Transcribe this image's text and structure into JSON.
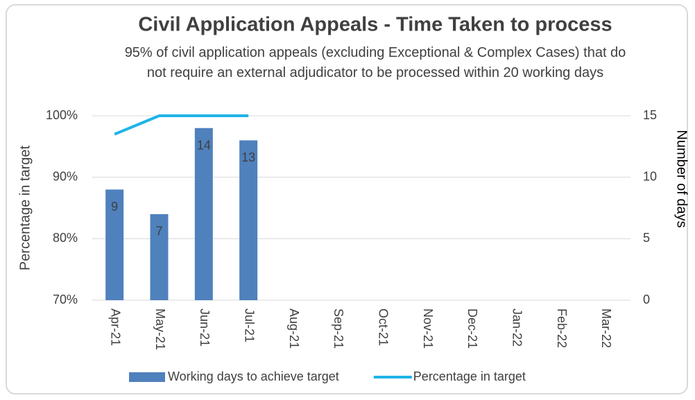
{
  "chart_data": {
    "type": "bar",
    "title": "Civil Application Appeals - Time Taken to process",
    "subtitle": "95% of civil application appeals (excluding Exceptional & Complex Cases) that do not require an external adjudicator to be processed within 20 working days",
    "ylabel": "Percentage in target",
    "y2label": "Number of days",
    "categories": [
      "Apr-21",
      "May-21",
      "Jun-21",
      "Jul-21",
      "Aug-21",
      "Sep-21",
      "Oct-21",
      "Nov-21",
      "Dec-21",
      "Jan-22",
      "Feb-22",
      "Mar-22"
    ],
    "series": [
      {
        "name": "Working days to achieve target",
        "type": "bar",
        "axis": "y2",
        "color": "#4f81bd",
        "values": [
          9,
          7,
          14,
          13,
          null,
          null,
          null,
          null,
          null,
          null,
          null,
          null
        ]
      },
      {
        "name": "Percentage in target",
        "type": "line",
        "axis": "y",
        "color": "#1eb4e8",
        "values": [
          97,
          100,
          100,
          100,
          null,
          null,
          null,
          null,
          null,
          null,
          null,
          null
        ]
      }
    ],
    "ylim": [
      70,
      100
    ],
    "yticks": [
      {
        "value": 70,
        "label": "70%"
      },
      {
        "value": 80,
        "label": "80%"
      },
      {
        "value": 90,
        "label": "90%"
      },
      {
        "value": 100,
        "label": "100%"
      }
    ],
    "y2lim": [
      0,
      15
    ],
    "y2ticks": [
      0,
      5,
      10,
      15
    ],
    "grid": true,
    "legend": "bottom"
  }
}
